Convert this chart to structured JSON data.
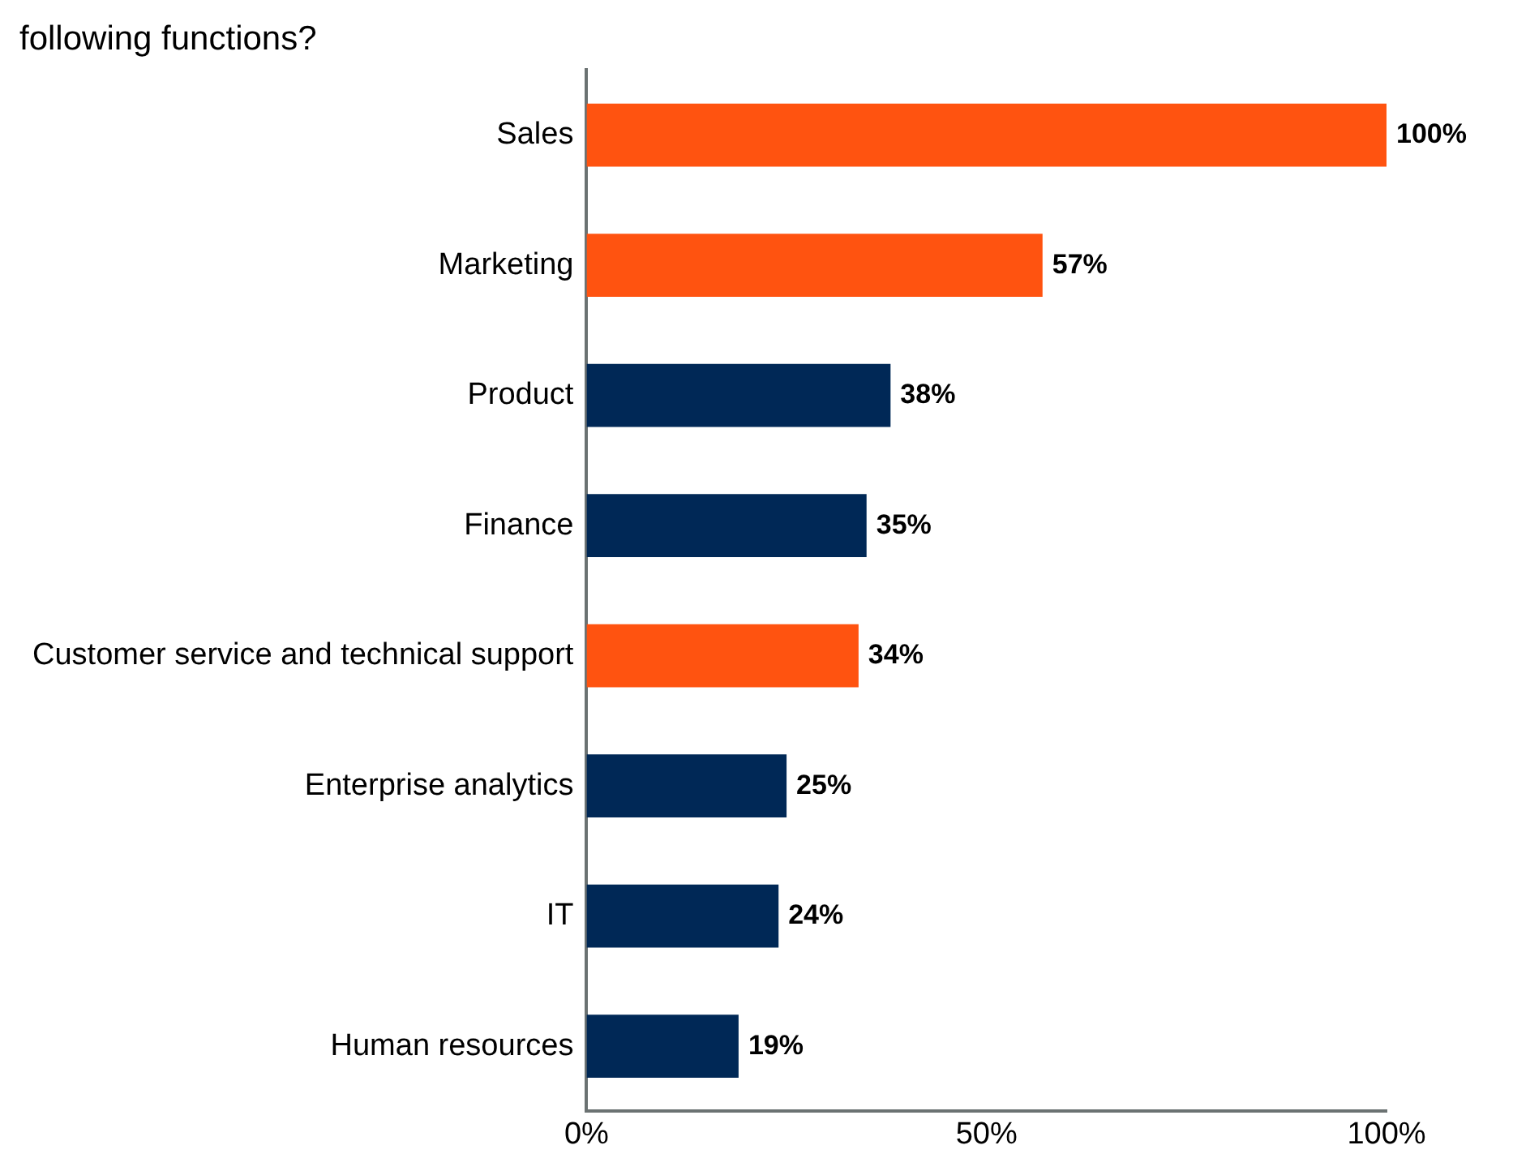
{
  "chart_data": {
    "type": "bar",
    "orientation": "horizontal",
    "title": "following functions?",
    "categories": [
      "Sales",
      "Marketing",
      "Product",
      "Finance",
      "Customer service and technical support",
      "Enterprise analytics",
      "IT",
      "Human resources"
    ],
    "values": [
      100,
      57,
      38,
      35,
      34,
      25,
      24,
      19
    ],
    "colors": [
      "#ff5310",
      "#ff5310",
      "#002856",
      "#002856",
      "#ff5310",
      "#002856",
      "#002856",
      "#002856"
    ],
    "xlim": [
      0,
      100
    ],
    "xticks": [
      {
        "value": 0,
        "label": "0%"
      },
      {
        "value": 50,
        "label": "50%"
      },
      {
        "value": 100,
        "label": "100%"
      }
    ],
    "value_labels": [
      "100%",
      "57%",
      "38%",
      "35%",
      "34%",
      "25%",
      "24%",
      "19%"
    ],
    "grid": false,
    "legend": false
  }
}
